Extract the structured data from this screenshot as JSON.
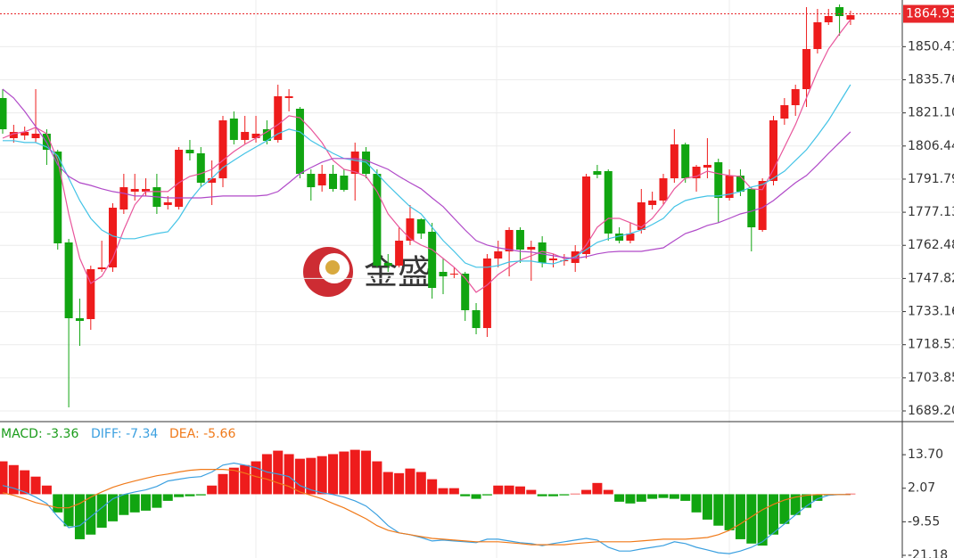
{
  "chart_data": [
    {
      "type": "candlestick",
      "watermark": "金盛",
      "up_color": "#ee1c1c",
      "down_color": "#11a511",
      "ylim": [
        1684.86,
        1871.06
      ],
      "yticks": [
        1850.41,
        1835.76,
        {
          "value": 1821.1,
          "label": "1821.10"
        },
        1806.44,
        1791.79,
        1777.13,
        1762.48,
        1747.82,
        1733.16,
        1718.51,
        1703.85,
        {
          "value": 1689.2,
          "label": "1689.20"
        }
      ],
      "grid": true,
      "last_price": 1864.93,
      "last_price_color": "#e8262a",
      "open": [
        1827.67,
        1809.91,
        1811.1,
        1809.91,
        1811.89,
        1803.99,
        1763.76,
        1730.22,
        1729.83,
        1751.92,
        1752.71,
        1778.35,
        1786.24,
        1786.24,
        1788.21,
        1780.32,
        1779.53,
        1804.78,
        1803.21,
        1790.19,
        1792.16,
        1818.59,
        1809.12,
        1809.91,
        1813.86,
        1809.12,
        1827.67,
        1822.93,
        1794.13,
        1789.0,
        1794.13,
        1793.34,
        1794.13,
        1803.99,
        1794.13,
        1754.69,
        1753.5,
        1764.55,
        1774.01,
        1768.49,
        1750.74,
        1749.55,
        1749.95,
        1733.77,
        1725.88,
        1756.66,
        1759.81,
        1769.28,
        1760.6,
        1763.76,
        1755.87,
        1755.47,
        1754.69,
        1758.63,
        1795.32,
        1795.32,
        1767.7,
        1764.55,
        1769.28,
        1780.32,
        1782.3,
        1792.16,
        1807.15,
        1792.16,
        1796.89,
        1799.26,
        1783.48,
        1793.34,
        1787.43,
        1769.28,
        1790.98,
        1818.59,
        1824.51,
        1831.61,
        1849.36,
        1861.2,
        1867.9,
        1862.38
      ],
      "high": [
        1831.61,
        1815.83,
        1815.04,
        1831.61,
        1813.86,
        1804.78,
        1765.34,
        1738.9,
        1753.5,
        1764.55,
        1781.11,
        1794.13,
        1794.13,
        1792.16,
        1794.13,
        1784.27,
        1805.97,
        1809.12,
        1805.97,
        1800.05,
        1819.78,
        1821.75,
        1819.78,
        1819.78,
        1817.8,
        1833.58,
        1831.61,
        1823.72,
        1796.1,
        1798.08,
        1798.08,
        1796.1,
        1807.94,
        1805.97,
        1796.1,
        1758.63,
        1770.46,
        1780.32,
        1774.41,
        1772.44,
        1756.66,
        1752.71,
        1750.74,
        1736.93,
        1758.63,
        1764.55,
        1770.46,
        1770.46,
        1764.55,
        1766.52,
        1758.63,
        1758.63,
        1762.57,
        1794.13,
        1798.08,
        1796.1,
        1770.46,
        1772.44,
        1787.43,
        1786.24,
        1794.13,
        1813.86,
        1807.94,
        1798.08,
        1809.91,
        1800.84,
        1796.1,
        1796.1,
        1788.21,
        1792.16,
        1819.78,
        1827.67,
        1833.58,
        1867.9,
        1867.12,
        1867.12,
        1869.09,
        1866.33
      ],
      "low": [
        1811.89,
        1807.94,
        1809.12,
        1807.94,
        1798.08,
        1760.6,
        1690.78,
        1718.0,
        1725.09,
        1750.74,
        1750.74,
        1776.38,
        1782.3,
        1784.27,
        1776.38,
        1778.35,
        1778.35,
        1800.05,
        1788.21,
        1780.32,
        1788.21,
        1807.15,
        1807.15,
        1807.94,
        1807.15,
        1807.94,
        1821.75,
        1792.16,
        1782.3,
        1786.24,
        1786.24,
        1786.24,
        1782.3,
        1792.16,
        1752.71,
        1750.74,
        1752.71,
        1762.57,
        1765.34,
        1738.9,
        1740.87,
        1747.98,
        1729.04,
        1723.12,
        1721.94,
        1752.71,
        1748.76,
        1754.69,
        1746.79,
        1752.71,
        1752.71,
        1753.5,
        1750.74,
        1756.66,
        1792.16,
        1764.55,
        1763.36,
        1763.36,
        1767.7,
        1778.35,
        1780.32,
        1790.19,
        1790.19,
        1786.24,
        1792.16,
        1772.44,
        1782.3,
        1784.27,
        1759.81,
        1768.49,
        1789.0,
        1815.83,
        1819.78,
        1823.72,
        1847.39,
        1860.01,
        1855.28,
        1860.01
      ],
      "close": [
        1813.86,
        1812.67,
        1812.67,
        1811.89,
        1804.78,
        1763.36,
        1730.22,
        1729.04,
        1751.92,
        1752.71,
        1779.14,
        1788.21,
        1787.43,
        1787.43,
        1779.53,
        1781.51,
        1804.78,
        1803.21,
        1790.19,
        1792.16,
        1817.8,
        1809.12,
        1812.67,
        1811.89,
        1808.73,
        1828.45,
        1828.45,
        1794.13,
        1788.21,
        1794.13,
        1787.43,
        1787.03,
        1803.99,
        1794.13,
        1753.5,
        1753.5,
        1764.55,
        1774.41,
        1767.7,
        1743.63,
        1748.76,
        1749.95,
        1733.77,
        1725.88,
        1756.66,
        1759.81,
        1769.28,
        1760.6,
        1761.79,
        1754.69,
        1756.66,
        1755.87,
        1759.81,
        1792.95,
        1793.74,
        1767.7,
        1764.55,
        1767.7,
        1781.51,
        1782.3,
        1792.16,
        1807.15,
        1792.16,
        1797.29,
        1798.08,
        1783.48,
        1793.34,
        1786.24,
        1770.46,
        1790.98,
        1817.8,
        1824.51,
        1831.61,
        1849.36,
        1861.2,
        1863.96,
        1863.96,
        1864.35
      ],
      "series": [
        {
          "color": "#e8559b",
          "values": [
            1809.9,
            1811.9,
            1812.7,
            1814.7,
            1811.9,
            1800.1,
            1776.4,
            1756.7,
            1745.6,
            1748.8,
            1756.7,
            1769.3,
            1780.4,
            1786.3,
            1786.3,
            1786.3,
            1790.2,
            1793.0,
            1794.2,
            1796.1,
            1800.1,
            1804.0,
            1807.2,
            1809.9,
            1812.7,
            1815.9,
            1819.8,
            1819.0,
            1813.9,
            1808.0,
            1800.1,
            1796.1,
            1795.0,
            1793.0,
            1786.3,
            1776.4,
            1770.5,
            1765.4,
            1762.6,
            1760.6,
            1756.7,
            1752.8,
            1748.0,
            1741.7,
            1744.9,
            1749.6,
            1752.8,
            1755.9,
            1757.9,
            1759.8,
            1758.7,
            1756.7,
            1756.7,
            1762.6,
            1770.5,
            1774.4,
            1774.4,
            1772.5,
            1770.5,
            1774.4,
            1780.4,
            1787.5,
            1792.2,
            1793.0,
            1795.3,
            1794.2,
            1793.4,
            1793.0,
            1787.5,
            1787.1,
            1796.1,
            1806.0,
            1815.9,
            1827.7,
            1839.5,
            1849.4,
            1856.1,
            1862.4
          ]
        },
        {
          "color": "#43c3e6",
          "values": [
            1808.8,
            1808.8,
            1808.0,
            1808.0,
            1806.0,
            1802.1,
            1792.2,
            1782.3,
            1774.4,
            1769.3,
            1766.6,
            1765.4,
            1765.4,
            1766.6,
            1767.7,
            1768.5,
            1774.4,
            1782.3,
            1788.3,
            1792.2,
            1796.9,
            1800.1,
            1803.2,
            1806.0,
            1808.8,
            1811.9,
            1813.9,
            1812.7,
            1808.8,
            1806.0,
            1803.2,
            1800.9,
            1800.1,
            1799.3,
            1794.2,
            1789.0,
            1784.3,
            1779.6,
            1776.4,
            1770.5,
            1764.6,
            1759.8,
            1754.7,
            1752.8,
            1752.8,
            1753.5,
            1755.1,
            1755.5,
            1755.5,
            1754.7,
            1754.3,
            1755.9,
            1757.5,
            1760.6,
            1763.8,
            1765.4,
            1766.6,
            1767.7,
            1769.3,
            1771.7,
            1774.4,
            1779.6,
            1782.3,
            1783.5,
            1784.3,
            1784.3,
            1785.1,
            1786.3,
            1788.3,
            1789.4,
            1792.2,
            1795.3,
            1800.1,
            1804.8,
            1811.1,
            1817.8,
            1825.7,
            1833.6
          ]
        },
        {
          "color": "#b049c8",
          "values": [
            1831.6,
            1827.7,
            1821.8,
            1815.1,
            1808.0,
            1798.1,
            1793.0,
            1790.2,
            1789.0,
            1787.5,
            1786.3,
            1785.5,
            1784.3,
            1784.3,
            1783.9,
            1783.5,
            1783.5,
            1783.5,
            1783.5,
            1783.9,
            1784.3,
            1784.3,
            1784.3,
            1784.3,
            1784.7,
            1786.3,
            1790.2,
            1794.2,
            1796.9,
            1799.3,
            1800.9,
            1800.9,
            1800.9,
            1800.1,
            1798.1,
            1796.1,
            1793.0,
            1790.2,
            1787.5,
            1783.5,
            1779.6,
            1774.4,
            1769.3,
            1764.6,
            1762.6,
            1761.4,
            1760.6,
            1759.8,
            1759.5,
            1758.7,
            1757.9,
            1757.1,
            1756.7,
            1757.5,
            1758.7,
            1759.5,
            1759.8,
            1759.8,
            1759.8,
            1760.6,
            1761.4,
            1764.6,
            1767.7,
            1769.3,
            1771.3,
            1772.5,
            1774.4,
            1776.4,
            1777.6,
            1779.2,
            1782.3,
            1786.3,
            1790.2,
            1793.4,
            1798.1,
            1803.2,
            1808.0,
            1812.7
          ]
        }
      ]
    },
    {
      "type": "macd",
      "up_color": "#ee1c1c",
      "down_color": "#11a511",
      "ylim": [
        -22.11,
        24.55
      ],
      "yticks": [
        {
          "value": 13.7,
          "label": "13.70"
        },
        2.07,
        -9.55,
        -21.18
      ],
      "histogram": {
        "name": "MACD: -3.36",
        "color": "#1a9c1a",
        "values": [
          11.4,
          10.1,
          8.3,
          6.1,
          3.0,
          -6.3,
          -11.1,
          -15.6,
          -14.0,
          -11.6,
          -9.4,
          -7.2,
          -6.3,
          -5.7,
          -4.7,
          -2.3,
          -1.0,
          -0.7,
          -0.4,
          3.0,
          7.0,
          9.2,
          10.1,
          11.4,
          13.9,
          15.1,
          13.9,
          12.3,
          12.6,
          13.2,
          13.9,
          14.8,
          15.4,
          15.1,
          11.4,
          7.7,
          7.3,
          8.9,
          7.7,
          5.2,
          2.1,
          2.1,
          -0.7,
          -1.6,
          -0.4,
          3.0,
          3.0,
          2.7,
          1.5,
          -0.7,
          -0.7,
          -0.4,
          0.2,
          1.5,
          3.9,
          1.5,
          -2.6,
          -3.2,
          -2.6,
          -1.6,
          -1.3,
          -1.6,
          -2.3,
          -6.3,
          -8.8,
          -10.9,
          -12.5,
          -15.6,
          -17.1,
          -17.8,
          -14.0,
          -10.3,
          -7.2,
          -4.7,
          -2.3,
          -0.4,
          -0.1,
          0.2
        ]
      },
      "series": [
        {
          "name": "DIFF: -7.34",
          "color": "#3ba0e0",
          "values": [
            3.0,
            2.1,
            0.8,
            -1.0,
            -3.2,
            -7.8,
            -11.6,
            -10.9,
            -7.8,
            -4.7,
            -1.6,
            -0.1,
            0.8,
            1.5,
            2.7,
            4.6,
            5.2,
            5.8,
            6.1,
            7.7,
            10.1,
            10.8,
            10.1,
            9.2,
            7.7,
            7.0,
            6.1,
            3.0,
            1.5,
            0.5,
            -0.1,
            -1.0,
            -2.3,
            -4.1,
            -7.2,
            -10.9,
            -13.4,
            -14.0,
            -15.0,
            -16.2,
            -15.9,
            -16.2,
            -16.5,
            -16.8,
            -15.6,
            -15.6,
            -16.2,
            -16.8,
            -17.1,
            -17.8,
            -17.1,
            -16.5,
            -15.9,
            -15.3,
            -15.9,
            -18.4,
            -19.7,
            -19.7,
            -19.0,
            -18.4,
            -17.8,
            -16.5,
            -17.1,
            -18.4,
            -19.3,
            -20.3,
            -20.6,
            -19.7,
            -18.4,
            -16.5,
            -13.4,
            -10.3,
            -7.2,
            -4.1,
            -1.6,
            -0.4,
            -0.1,
            -0.1
          ]
        },
        {
          "name": "DEA: -5.66",
          "color": "#f07a1a",
          "values": [
            0.5,
            -0.4,
            -1.6,
            -2.9,
            -3.8,
            -4.7,
            -4.7,
            -3.2,
            -1.0,
            0.8,
            2.4,
            3.6,
            4.6,
            5.5,
            6.4,
            7.0,
            7.7,
            8.3,
            8.6,
            8.6,
            8.6,
            8.3,
            7.3,
            6.1,
            5.2,
            3.9,
            2.7,
            0.8,
            -0.4,
            -1.6,
            -3.2,
            -4.7,
            -6.6,
            -8.5,
            -10.9,
            -12.5,
            -13.4,
            -14.0,
            -14.7,
            -15.3,
            -15.6,
            -15.9,
            -16.2,
            -16.5,
            -16.5,
            -16.5,
            -16.8,
            -17.1,
            -17.5,
            -17.5,
            -17.5,
            -17.5,
            -17.1,
            -16.8,
            -16.5,
            -16.5,
            -16.5,
            -16.5,
            -16.2,
            -15.9,
            -15.6,
            -15.6,
            -15.6,
            -15.3,
            -15.0,
            -14.0,
            -12.5,
            -10.3,
            -7.8,
            -5.4,
            -3.5,
            -2.0,
            -1.0,
            -0.4,
            -0.1,
            -0.1,
            -0.1,
            -0.1
          ]
        }
      ]
    }
  ]
}
